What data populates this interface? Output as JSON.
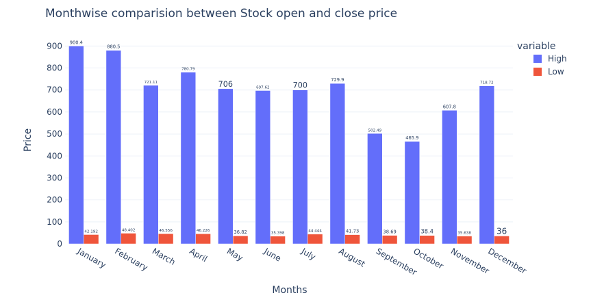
{
  "chart_data": {
    "type": "bar",
    "title": "Monthwise comparision between Stock open and close price",
    "xlabel": "Months",
    "ylabel": "Price",
    "categories": [
      "January",
      "February",
      "March",
      "April",
      "May",
      "June",
      "July",
      "August",
      "September",
      "October",
      "November",
      "December"
    ],
    "series": [
      {
        "name": "High",
        "color": "#636efa",
        "values": [
          900.4,
          880.5,
          721.11,
          780.79,
          706,
          697.62,
          700,
          729.9,
          502.49,
          465.9,
          607.8,
          718.72
        ],
        "labels": [
          "900.4",
          "880.5",
          "721.11",
          "780.79",
          "706",
          "697.62",
          "700",
          "729.9",
          "502.49",
          "465.9",
          "607.8",
          "718.72"
        ]
      },
      {
        "name": "Low",
        "color": "#ef553b",
        "values": [
          42.192,
          48.402,
          46.556,
          46.226,
          36.82,
          35.398,
          44.444,
          41.73,
          38.69,
          38.4,
          35.638,
          36
        ],
        "labels": [
          "42.192",
          "48.402",
          "46.556",
          "46.226",
          "36.82",
          "35.398",
          "44.444",
          "41.73",
          "38.69",
          "38.4",
          "35.638",
          "36"
        ]
      }
    ],
    "ylim": [
      0,
      947.8
    ],
    "yticks": [
      0,
      100,
      200,
      300,
      400,
      500,
      600,
      700,
      800,
      900
    ],
    "legend": {
      "title": "variable",
      "position": "top-right"
    },
    "grid": true,
    "barmode": "group"
  }
}
